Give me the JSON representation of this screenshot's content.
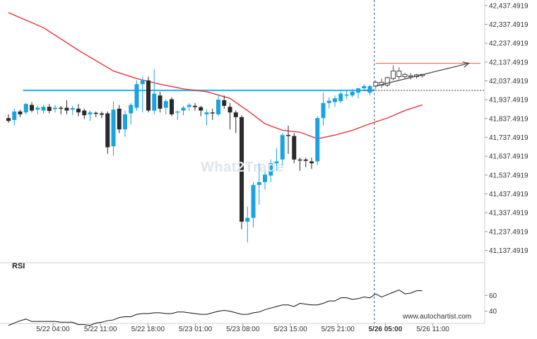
{
  "watermark": "What2Trade",
  "source": "www.autochartist.com",
  "rsi_label": "RSI",
  "chart_data": {
    "type": "candlestick",
    "price_axis": {
      "ticks": [
        "42,437.4919",
        "42,337.4919",
        "42,237.4919",
        "42,137.4919",
        "42,037.4919",
        "41,937.4919",
        "41,837.4919",
        "41,737.4919",
        "41,637.4919",
        "41,537.4919",
        "41,437.4919",
        "41,337.4919",
        "41,237.4919",
        "41,137.4919"
      ],
      "ylim": [
        41087,
        42467
      ]
    },
    "time_axis": {
      "ticks": [
        "5/22 04:00",
        "5/22 11:00",
        "5/22 18:00",
        "5/23 01:00",
        "5/23 08:00",
        "5/23 15:00",
        "5/25 21:00",
        "5/26 05:00",
        "5/26 11:00"
      ],
      "highlight": "5/26 05:00"
    },
    "candles": [
      {
        "o": 41840,
        "h": 41860,
        "l": 41815,
        "c": 41825
      },
      {
        "o": 41830,
        "h": 41890,
        "l": 41800,
        "c": 41875
      },
      {
        "o": 41875,
        "h": 41885,
        "l": 41845,
        "c": 41860
      },
      {
        "o": 41870,
        "h": 41920,
        "l": 41860,
        "c": 41915
      },
      {
        "o": 41910,
        "h": 41925,
        "l": 41870,
        "c": 41880
      },
      {
        "o": 41885,
        "h": 41905,
        "l": 41860,
        "c": 41895
      },
      {
        "o": 41880,
        "h": 41910,
        "l": 41865,
        "c": 41900
      },
      {
        "o": 41900,
        "h": 41915,
        "l": 41865,
        "c": 41878
      },
      {
        "o": 41888,
        "h": 41910,
        "l": 41870,
        "c": 41895
      },
      {
        "o": 41895,
        "h": 41905,
        "l": 41860,
        "c": 41893
      },
      {
        "o": 41895,
        "h": 41935,
        "l": 41860,
        "c": 41880
      },
      {
        "o": 41885,
        "h": 41905,
        "l": 41855,
        "c": 41893
      },
      {
        "o": 41890,
        "h": 41915,
        "l": 41850,
        "c": 41870
      },
      {
        "o": 41880,
        "h": 41890,
        "l": 41835,
        "c": 41855
      },
      {
        "o": 41860,
        "h": 41880,
        "l": 41825,
        "c": 41870
      },
      {
        "o": 41868,
        "h": 41875,
        "l": 41845,
        "c": 41862
      },
      {
        "o": 41865,
        "h": 41875,
        "l": 41840,
        "c": 41858
      },
      {
        "o": 41865,
        "h": 41875,
        "l": 41650,
        "c": 41685
      },
      {
        "o": 41690,
        "h": 41930,
        "l": 41640,
        "c": 41885
      },
      {
        "o": 41890,
        "h": 41910,
        "l": 41760,
        "c": 41780
      },
      {
        "o": 41780,
        "h": 41880,
        "l": 41740,
        "c": 41860
      },
      {
        "o": 41865,
        "h": 41920,
        "l": 41805,
        "c": 41910
      },
      {
        "o": 41895,
        "h": 42040,
        "l": 41880,
        "c": 42020
      },
      {
        "o": 42020,
        "h": 42060,
        "l": 41870,
        "c": 42040
      },
      {
        "o": 42040,
        "h": 42060,
        "l": 41870,
        "c": 41880
      },
      {
        "o": 41880,
        "h": 42100,
        "l": 41860,
        "c": 41970
      },
      {
        "o": 41960,
        "h": 41980,
        "l": 41870,
        "c": 41890
      },
      {
        "o": 41895,
        "h": 41940,
        "l": 41860,
        "c": 41930
      },
      {
        "o": 41940,
        "h": 41950,
        "l": 41850,
        "c": 41860
      },
      {
        "o": 41870,
        "h": 41880,
        "l": 41830,
        "c": 41875
      },
      {
        "o": 41880,
        "h": 41905,
        "l": 41855,
        "c": 41895
      },
      {
        "o": 41900,
        "h": 41920,
        "l": 41880,
        "c": 41910
      },
      {
        "o": 41905,
        "h": 41920,
        "l": 41880,
        "c": 41898
      },
      {
        "o": 41898,
        "h": 41905,
        "l": 41850,
        "c": 41880
      },
      {
        "o": 41860,
        "h": 41885,
        "l": 41800,
        "c": 41870
      },
      {
        "o": 41870,
        "h": 41890,
        "l": 41830,
        "c": 41868
      },
      {
        "o": 41860,
        "h": 41960,
        "l": 41850,
        "c": 41938
      },
      {
        "o": 41935,
        "h": 41960,
        "l": 41890,
        "c": 41905
      },
      {
        "o": 41900,
        "h": 41920,
        "l": 41780,
        "c": 41870
      },
      {
        "o": 41870,
        "h": 41880,
        "l": 41760,
        "c": 41845
      },
      {
        "o": 41845,
        "h": 41855,
        "l": 41250,
        "c": 41290
      },
      {
        "o": 41290,
        "h": 41370,
        "l": 41180,
        "c": 41310
      },
      {
        "o": 41310,
        "h": 41500,
        "l": 41260,
        "c": 41485
      },
      {
        "o": 41485,
        "h": 41600,
        "l": 41380,
        "c": 41500
      },
      {
        "o": 41500,
        "h": 41560,
        "l": 41460,
        "c": 41540
      },
      {
        "o": 41535,
        "h": 41620,
        "l": 41500,
        "c": 41600
      },
      {
        "o": 41600,
        "h": 41680,
        "l": 41560,
        "c": 41610
      },
      {
        "o": 41620,
        "h": 41760,
        "l": 41580,
        "c": 41750
      },
      {
        "o": 41750,
        "h": 41800,
        "l": 41650,
        "c": 41745
      },
      {
        "o": 41745,
        "h": 41760,
        "l": 41600,
        "c": 41620
      },
      {
        "o": 41620,
        "h": 41630,
        "l": 41560,
        "c": 41615
      },
      {
        "o": 41620,
        "h": 41630,
        "l": 41580,
        "c": 41613
      },
      {
        "o": 41610,
        "h": 41630,
        "l": 41570,
        "c": 41600
      },
      {
        "o": 41610,
        "h": 41850,
        "l": 41590,
        "c": 41840
      },
      {
        "o": 41840,
        "h": 41975,
        "l": 41800,
        "c": 41920
      },
      {
        "o": 41920,
        "h": 41950,
        "l": 41890,
        "c": 41932
      },
      {
        "o": 41925,
        "h": 41960,
        "l": 41900,
        "c": 41945
      },
      {
        "o": 41930,
        "h": 41980,
        "l": 41920,
        "c": 41970
      },
      {
        "o": 41960,
        "h": 41990,
        "l": 41940,
        "c": 41965
      },
      {
        "o": 41960,
        "h": 41995,
        "l": 41950,
        "c": 41980
      },
      {
        "o": 41975,
        "h": 42000,
        "l": 41945,
        "c": 41998
      },
      {
        "o": 41998,
        "h": 42020,
        "l": 41985,
        "c": 42010
      },
      {
        "o": 41975,
        "h": 42015,
        "l": 41960,
        "c": 42010
      },
      {
        "o": 42010,
        "h": 42040,
        "l": 41995,
        "c": 42030
      },
      {
        "o": 42030,
        "h": 42050,
        "l": 42000,
        "c": 42015
      },
      {
        "o": 42015,
        "h": 42060,
        "l": 42005,
        "c": 42055
      },
      {
        "o": 42050,
        "h": 42120,
        "l": 42040,
        "c": 42090
      },
      {
        "o": 42090,
        "h": 42110,
        "l": 42045,
        "c": 42060
      },
      {
        "o": 42060,
        "h": 42080,
        "l": 42050,
        "c": 42072
      },
      {
        "o": 42065,
        "h": 42080,
        "l": 42045,
        "c": 42060
      },
      {
        "o": 42060,
        "h": 42075,
        "l": 42050,
        "c": 42070
      },
      {
        "o": 42065,
        "h": 42075,
        "l": 42055,
        "c": 42072
      }
    ],
    "moving_average": [
      [
        0,
        42400
      ],
      [
        6,
        42320
      ],
      [
        12,
        42200
      ],
      [
        18,
        42090
      ],
      [
        22,
        42050
      ],
      [
        26,
        42020
      ],
      [
        30,
        41995
      ],
      [
        34,
        41980
      ],
      [
        38,
        41945
      ],
      [
        41,
        41880
      ],
      [
        44,
        41810
      ],
      [
        47,
        41775
      ],
      [
        50,
        41765
      ],
      [
        53,
        41730
      ],
      [
        56,
        41750
      ],
      [
        59,
        41775
      ],
      [
        62,
        41810
      ],
      [
        65,
        41840
      ],
      [
        68,
        41880
      ],
      [
        71,
        41910
      ]
    ],
    "resistance_level": 41987,
    "resistance_start": 2,
    "upper_level": 42131,
    "upper_level_start": 63,
    "dashed_level": 41987,
    "dashed_level_start": 61,
    "trend_start": [
      63,
      42010
    ],
    "trend_end": [
      78,
      42131
    ],
    "vertical_marker_index": 63,
    "rsi": {
      "ticks": [
        "60",
        "40"
      ],
      "ylim": [
        20,
        80
      ],
      "values": [
        22,
        25,
        28,
        30,
        27,
        27,
        27,
        27,
        27,
        26,
        26,
        26,
        23,
        23,
        22,
        25,
        26,
        28,
        29,
        32,
        33,
        33,
        36,
        37,
        37,
        38,
        38,
        37,
        37,
        39,
        39,
        38,
        37,
        36,
        36,
        38,
        40,
        41,
        40,
        38,
        36,
        36,
        38,
        39,
        42,
        44,
        46,
        48,
        48,
        46,
        50,
        49,
        48,
        48,
        50,
        53,
        53,
        57,
        57,
        55,
        56,
        58,
        57,
        62,
        58,
        61,
        64,
        67,
        62,
        63,
        66,
        66
      ]
    },
    "colors": {
      "bull": "#1aa3e0",
      "bear": "#2a2a2a",
      "ma": "#e8262b",
      "resistance": "#3ab4ea",
      "upper": "#f07a5a",
      "trend": "#444444"
    }
  }
}
